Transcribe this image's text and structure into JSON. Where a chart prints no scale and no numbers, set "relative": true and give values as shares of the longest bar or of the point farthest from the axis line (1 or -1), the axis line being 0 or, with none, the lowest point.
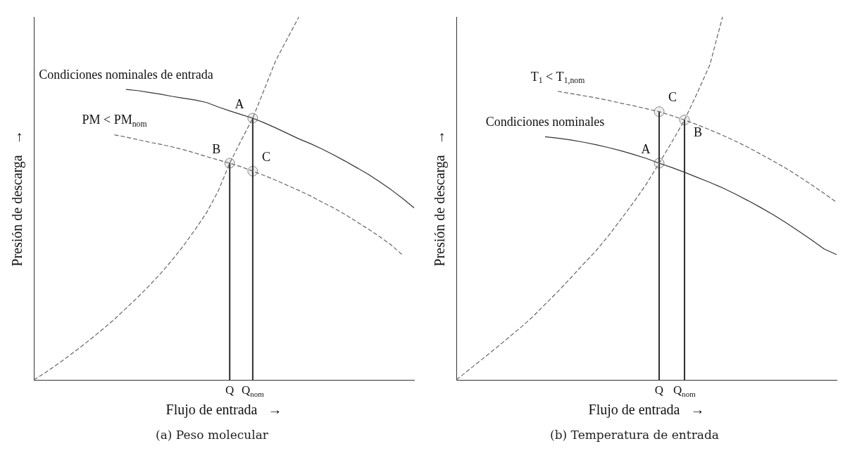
{
  "chart_data": [
    {
      "type": "line",
      "title": "(a) Peso molecular",
      "xlabel": "Flujo de entrada   →",
      "ylabel": "Presión de descarga   →",
      "relative": true,
      "tick_labels": "x",
      "grid": false,
      "legend": false,
      "categories": [
        null,
        null,
        null,
        null,
        null,
        null,
        null,
        null,
        null,
        null,
        null,
        null,
        null,
        null,
        null,
        null,
        null,
        "Q",
        null,
        "Q$_{nom}$",
        null,
        null,
        null,
        null,
        null,
        null,
        null,
        null,
        null,
        null,
        null,
        null,
        null,
        null
      ],
      "series": [
        {
          "color": "#666666",
          "line_style": "dashed",
          "values": [
            0,
            0.02,
            0.042,
            0.065,
            0.089,
            0.114,
            0.14,
            0.167,
            0.197,
            0.227,
            0.259,
            0.293,
            0.33,
            0.37,
            0.414,
            0.461,
            0.52,
            0.597,
            0.66,
            0.721,
            0.8,
            0.88,
            0.94,
            1.0,
            null,
            null,
            null,
            null,
            null,
            null,
            null,
            null,
            null,
            null
          ]
        },
        {
          "color": "#333333",
          "line_style": "solid",
          "values": [
            null,
            null,
            null,
            null,
            null,
            null,
            null,
            null,
            0.8,
            0.797,
            0.792,
            0.787,
            0.781,
            0.776,
            0.771,
            0.764,
            0.752,
            0.741,
            0.731,
            0.721,
            0.708,
            0.694,
            0.679,
            0.664,
            0.651,
            0.636,
            0.62,
            0.603,
            0.585,
            0.567,
            0.546,
            0.524,
            0.5,
            0.474
          ]
        },
        {
          "color": "#666666",
          "line_style": "dashed",
          "values": [
            null,
            null,
            null,
            null,
            null,
            null,
            null,
            0.675,
            0.669,
            0.662,
            0.655,
            0.649,
            0.642,
            0.634,
            0.625,
            0.615,
            0.606,
            0.597,
            0.587,
            0.575,
            0.563,
            0.55,
            0.536,
            0.522,
            0.507,
            0.49,
            0.474,
            0.456,
            0.436,
            0.416,
            0.395,
            0.372,
            0.344,
            null
          ]
        },
        {
          "type": "bar",
          "color": "#333333",
          "values": [
            null,
            null,
            null,
            null,
            null,
            null,
            null,
            null,
            null,
            null,
            null,
            null,
            null,
            null,
            null,
            null,
            null,
            0.597,
            null,
            0.721,
            null,
            null,
            null,
            null,
            null,
            null,
            null,
            null,
            null,
            null,
            null,
            null,
            null,
            null
          ]
        },
        {
          "type": "scatter",
          "color": "#888888",
          "marker": "circle",
          "values": [
            null,
            null,
            null,
            null,
            null,
            null,
            null,
            null,
            null,
            null,
            null,
            null,
            null,
            null,
            null,
            null,
            null,
            0.597,
            null,
            0.721,
            null,
            null,
            null,
            null,
            null,
            null,
            null,
            null,
            null,
            null,
            null,
            null,
            null,
            null
          ]
        },
        {
          "type": "scatter",
          "color": "#888888",
          "marker": "circle",
          "values": [
            null,
            null,
            null,
            null,
            null,
            null,
            null,
            null,
            null,
            null,
            null,
            null,
            null,
            null,
            null,
            null,
            null,
            null,
            null,
            0.575,
            null,
            null,
            null,
            null,
            null,
            null,
            null,
            null,
            null,
            null,
            null,
            null,
            null,
            null
          ]
        }
      ],
      "annotations": [
        {
          "text": "Condiciones nominales de entrada",
          "y": 0.8
        },
        {
          "text": "PM < PM$_{nom}$",
          "y": 0.675
        },
        {
          "text": "A",
          "x": "Q$_{nom}$",
          "y": 0.721
        },
        {
          "text": "B",
          "x": "Q",
          "y": 0.597
        },
        {
          "text": "C",
          "x": "Q$_{nom}$",
          "y": 0.575
        }
      ]
    },
    {
      "type": "line",
      "title": "(b) Temperatura de entrada",
      "xlabel": "Flujo de entrada   →",
      "ylabel": "Presión de descarga   →",
      "relative": true,
      "tick_labels": "x",
      "grid": false,
      "legend": false,
      "categories": [
        null,
        null,
        null,
        null,
        null,
        null,
        null,
        null,
        null,
        null,
        null,
        null,
        null,
        null,
        null,
        null,
        "Q",
        null,
        "Q$_{nom}$",
        null,
        null,
        null,
        null,
        null,
        null,
        null,
        null,
        null,
        null,
        null,
        null
      ],
      "series": [
        {
          "color": "#666666",
          "line_style": "dashed",
          "values": [
            0,
            0.028,
            0.056,
            0.084,
            0.113,
            0.142,
            0.173,
            0.208,
            0.243,
            0.28,
            0.318,
            0.355,
            0.397,
            0.443,
            0.49,
            0.54,
            0.597,
            0.655,
            0.716,
            0.79,
            0.868,
            1.0,
            null,
            null,
            null,
            null,
            null,
            null,
            null,
            null,
            null
          ]
        },
        {
          "color": "#333333",
          "line_style": "solid",
          "values": [
            null,
            null,
            null,
            null,
            null,
            null,
            null,
            0.67,
            0.666,
            0.661,
            0.655,
            0.648,
            0.64,
            0.631,
            0.621,
            0.61,
            0.597,
            0.585,
            0.572,
            0.558,
            0.544,
            0.529,
            0.512,
            0.494,
            0.475,
            0.455,
            0.433,
            0.41,
            0.386,
            0.361,
            0.345
          ]
        },
        {
          "color": "#666666",
          "line_style": "dashed",
          "values": [
            null,
            null,
            null,
            null,
            null,
            null,
            null,
            null,
            0.795,
            0.789,
            0.783,
            0.777,
            0.77,
            0.762,
            0.755,
            0.747,
            0.739,
            0.728,
            0.716,
            0.703,
            0.689,
            0.674,
            0.658,
            0.641,
            0.622,
            0.603,
            0.583,
            0.561,
            0.538,
            0.514,
            0.489
          ]
        },
        {
          "type": "bar",
          "color": "#333333",
          "values": [
            null,
            null,
            null,
            null,
            null,
            null,
            null,
            null,
            null,
            null,
            null,
            null,
            null,
            null,
            null,
            null,
            0.739,
            null,
            0.716,
            null,
            null,
            null,
            null,
            null,
            null,
            null,
            null,
            null,
            null,
            null,
            null
          ]
        },
        {
          "type": "scatter",
          "color": "#888888",
          "marker": "circle",
          "values": [
            null,
            null,
            null,
            null,
            null,
            null,
            null,
            null,
            null,
            null,
            null,
            null,
            null,
            null,
            null,
            null,
            0.597,
            null,
            0.716,
            null,
            null,
            null,
            null,
            null,
            null,
            null,
            null,
            null,
            null,
            null,
            null
          ]
        },
        {
          "type": "scatter",
          "color": "#888888",
          "marker": "circle",
          "values": [
            null,
            null,
            null,
            null,
            null,
            null,
            null,
            null,
            null,
            null,
            null,
            null,
            null,
            null,
            null,
            null,
            0.739,
            null,
            null,
            null,
            null,
            null,
            null,
            null,
            null,
            null,
            null,
            null,
            null,
            null,
            null
          ]
        }
      ],
      "annotations": [
        {
          "text": "T$_{1}$ < T$_{1,nom}$",
          "y": 0.795
        },
        {
          "text": "Condiciones nominales",
          "y": 0.67
        },
        {
          "text": "C",
          "x": "Q",
          "y": 0.739
        },
        {
          "text": "B",
          "x": "Q$_{nom}$",
          "y": 0.716
        },
        {
          "text": "A",
          "x": "Q",
          "y": 0.597
        }
      ]
    }
  ]
}
